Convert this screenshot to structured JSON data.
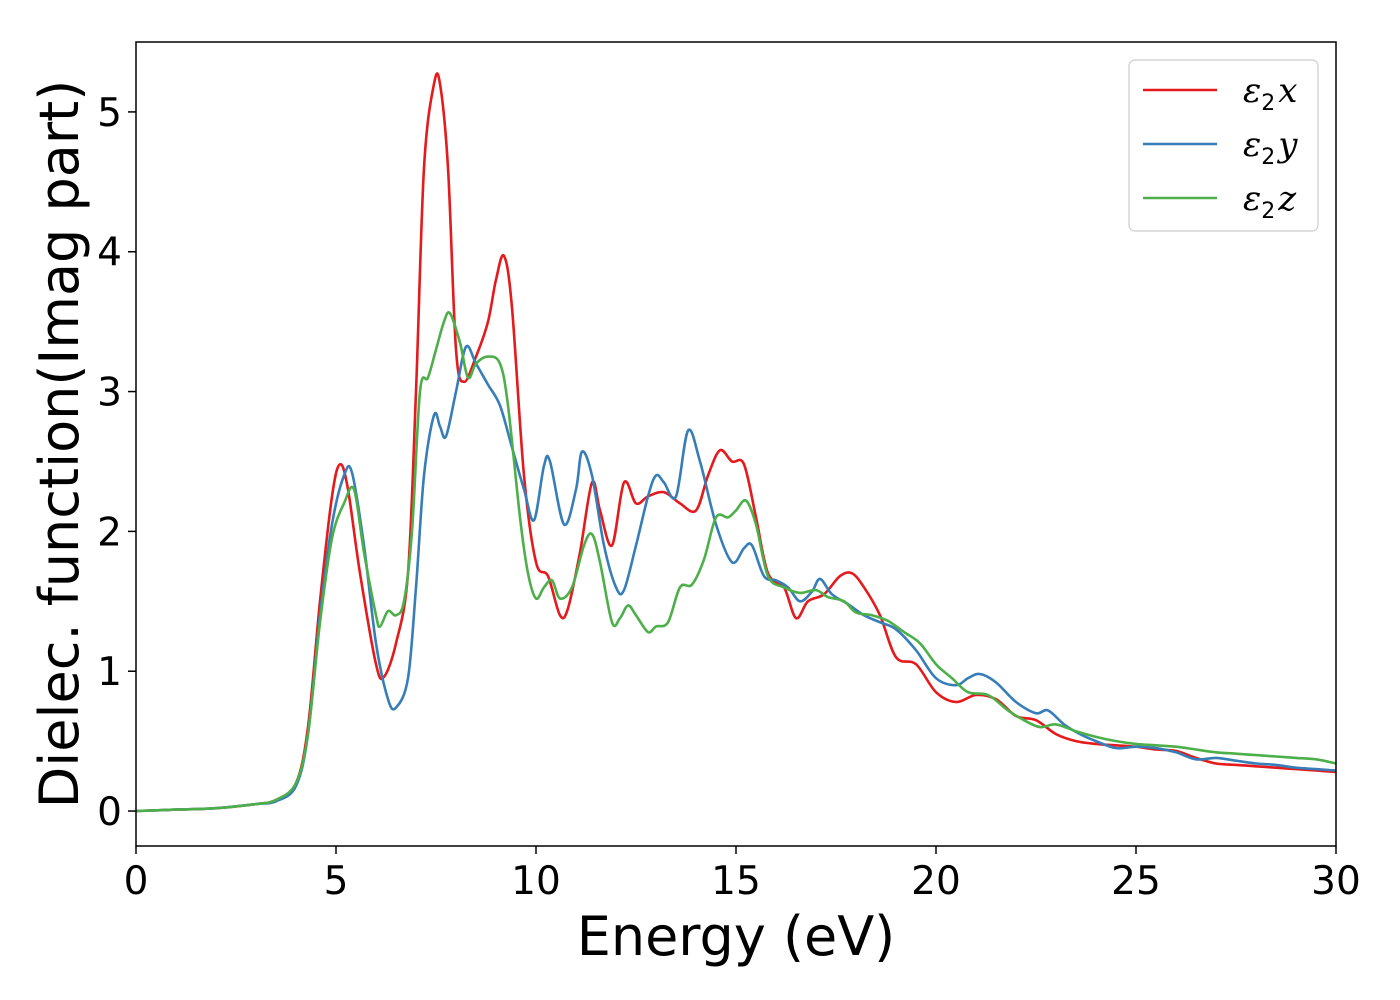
{
  "chart_data": {
    "type": "line",
    "xlabel": "Energy (eV)",
    "ylabel": "Dielec. function(Imag part)",
    "xlim": [
      0,
      30
    ],
    "ylim": [
      -0.25,
      5.5
    ],
    "xticks": [
      0,
      5,
      10,
      15,
      20,
      25,
      30
    ],
    "yticks": [
      0,
      1,
      2,
      3,
      4,
      5
    ],
    "grid": false,
    "legend": "top-right",
    "series": [
      {
        "name": "ε2x",
        "symbol": "ε",
        "sub": "2",
        "suffix": "x",
        "color": "#e41a1c",
        "x": [
          0,
          1,
          2,
          3,
          3.5,
          4,
          4.3,
          4.6,
          4.9,
          5.1,
          5.3,
          5.6,
          6.0,
          6.2,
          6.5,
          6.8,
          7.0,
          7.2,
          7.45,
          7.6,
          7.8,
          8.0,
          8.2,
          8.5,
          8.8,
          9.0,
          9.2,
          9.4,
          9.7,
          10.0,
          10.3,
          10.6,
          10.8,
          11.1,
          11.4,
          11.6,
          11.9,
          12.2,
          12.5,
          12.8,
          13.2,
          13.6,
          14.0,
          14.3,
          14.6,
          14.9,
          15.2,
          15.5,
          15.8,
          16.2,
          16.5,
          16.8,
          17.2,
          17.6,
          17.9,
          18.2,
          18.6,
          19.0,
          19.5,
          20.0,
          20.5,
          21.0,
          21.5,
          22.0,
          22.5,
          23.0,
          23.5,
          24.0,
          24.5,
          25.0,
          25.5,
          26.0,
          26.5,
          27.0,
          27.5,
          28.0,
          28.5,
          29.0,
          29.5,
          30.0
        ],
        "values": [
          0.0,
          0.01,
          0.02,
          0.05,
          0.08,
          0.2,
          0.6,
          1.5,
          2.25,
          2.48,
          2.3,
          1.7,
          1.05,
          0.96,
          1.2,
          1.7,
          3.0,
          4.6,
          5.2,
          5.2,
          4.6,
          3.3,
          3.07,
          3.25,
          3.5,
          3.8,
          3.97,
          3.6,
          2.4,
          1.78,
          1.68,
          1.4,
          1.45,
          1.85,
          2.35,
          2.15,
          1.9,
          2.35,
          2.2,
          2.25,
          2.28,
          2.2,
          2.15,
          2.4,
          2.58,
          2.5,
          2.48,
          2.1,
          1.7,
          1.6,
          1.38,
          1.5,
          1.55,
          1.68,
          1.7,
          1.6,
          1.4,
          1.1,
          1.05,
          0.85,
          0.78,
          0.83,
          0.8,
          0.68,
          0.65,
          0.55,
          0.5,
          0.48,
          0.47,
          0.46,
          0.44,
          0.43,
          0.38,
          0.34,
          0.33,
          0.32,
          0.31,
          0.3,
          0.29,
          0.28
        ]
      },
      {
        "name": "ε2y",
        "symbol": "ε",
        "sub": "2",
        "suffix": "y",
        "color": "#377eb8",
        "x": [
          0,
          1,
          2,
          3,
          3.5,
          4,
          4.3,
          4.6,
          4.9,
          5.2,
          5.4,
          5.7,
          6.0,
          6.3,
          6.5,
          6.8,
          7.0,
          7.2,
          7.45,
          7.6,
          7.75,
          8.0,
          8.25,
          8.5,
          8.8,
          9.1,
          9.4,
          9.7,
          9.95,
          10.2,
          10.35,
          10.7,
          11.0,
          11.15,
          11.4,
          11.7,
          12.0,
          12.2,
          12.5,
          12.8,
          13.0,
          13.2,
          13.5,
          13.8,
          14.1,
          14.5,
          14.9,
          15.2,
          15.4,
          15.7,
          16.0,
          16.3,
          16.6,
          16.9,
          17.1,
          17.4,
          17.8,
          18.2,
          18.6,
          19.0,
          19.5,
          20.0,
          20.5,
          20.8,
          21.1,
          21.5,
          22.0,
          22.5,
          22.8,
          23.2,
          23.6,
          24.0,
          24.5,
          25.0,
          25.5,
          26.0,
          26.5,
          27.0,
          27.5,
          28.0,
          28.5,
          29.0,
          29.5,
          30.0
        ],
        "values": [
          0.0,
          0.01,
          0.02,
          0.05,
          0.07,
          0.18,
          0.55,
          1.4,
          2.05,
          2.4,
          2.42,
          1.9,
          1.2,
          0.8,
          0.74,
          0.95,
          1.6,
          2.4,
          2.83,
          2.75,
          2.68,
          3.0,
          3.32,
          3.2,
          3.05,
          2.9,
          2.6,
          2.3,
          2.08,
          2.47,
          2.5,
          2.05,
          2.3,
          2.57,
          2.4,
          1.9,
          1.6,
          1.58,
          1.9,
          2.25,
          2.4,
          2.35,
          2.25,
          2.72,
          2.5,
          2.05,
          1.78,
          1.88,
          1.9,
          1.68,
          1.65,
          1.6,
          1.5,
          1.57,
          1.66,
          1.55,
          1.48,
          1.4,
          1.35,
          1.3,
          1.15,
          0.95,
          0.9,
          0.95,
          0.98,
          0.92,
          0.78,
          0.7,
          0.72,
          0.62,
          0.55,
          0.5,
          0.45,
          0.46,
          0.45,
          0.42,
          0.37,
          0.38,
          0.36,
          0.34,
          0.33,
          0.31,
          0.3,
          0.29
        ]
      },
      {
        "name": "ε2z",
        "symbol": "ε",
        "sub": "2",
        "suffix": "z",
        "color": "#4daf4a",
        "x": [
          0,
          1,
          2,
          3,
          3.5,
          4,
          4.3,
          4.6,
          4.9,
          5.2,
          5.45,
          5.7,
          6.0,
          6.1,
          6.3,
          6.5,
          6.7,
          6.9,
          7.1,
          7.3,
          7.5,
          7.7,
          7.85,
          8.1,
          8.3,
          8.5,
          8.8,
          9.1,
          9.3,
          9.6,
          9.8,
          10.0,
          10.2,
          10.4,
          10.6,
          10.9,
          11.2,
          11.4,
          11.6,
          11.9,
          12.1,
          12.3,
          12.5,
          12.8,
          13.0,
          13.3,
          13.6,
          13.9,
          14.2,
          14.5,
          14.8,
          15.0,
          15.25,
          15.5,
          15.8,
          16.2,
          16.6,
          17.0,
          17.3,
          17.7,
          18.0,
          18.4,
          18.8,
          19.2,
          19.6,
          20.0,
          20.4,
          20.8,
          21.3,
          21.8,
          22.2,
          22.6,
          23.0,
          23.5,
          24.0,
          24.5,
          25.0,
          25.5,
          26.0,
          26.5,
          27.0,
          27.5,
          28.0,
          28.5,
          29.0,
          29.5,
          30.0
        ],
        "values": [
          0.0,
          0.01,
          0.02,
          0.05,
          0.08,
          0.2,
          0.55,
          1.35,
          1.95,
          2.2,
          2.3,
          1.85,
          1.4,
          1.32,
          1.43,
          1.4,
          1.5,
          2.0,
          3.0,
          3.1,
          3.3,
          3.5,
          3.56,
          3.35,
          3.1,
          3.2,
          3.25,
          3.2,
          2.9,
          2.1,
          1.7,
          1.52,
          1.6,
          1.65,
          1.52,
          1.6,
          1.9,
          1.98,
          1.78,
          1.35,
          1.38,
          1.47,
          1.4,
          1.28,
          1.32,
          1.35,
          1.6,
          1.62,
          1.8,
          2.1,
          2.1,
          2.15,
          2.22,
          2.05,
          1.68,
          1.6,
          1.56,
          1.58,
          1.53,
          1.5,
          1.42,
          1.4,
          1.36,
          1.28,
          1.2,
          1.05,
          0.95,
          0.85,
          0.83,
          0.72,
          0.65,
          0.6,
          0.62,
          0.57,
          0.53,
          0.5,
          0.48,
          0.47,
          0.46,
          0.44,
          0.42,
          0.41,
          0.4,
          0.39,
          0.38,
          0.37,
          0.34
        ]
      }
    ]
  }
}
